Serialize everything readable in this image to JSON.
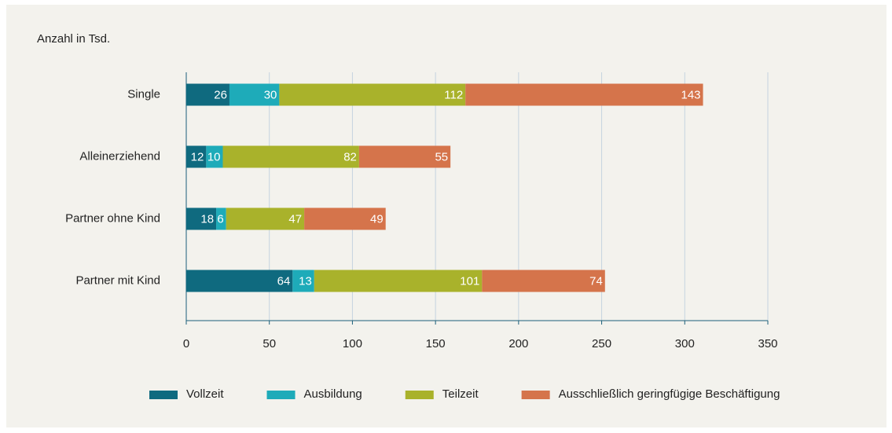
{
  "chart_data": {
    "type": "stacked-bar-horizontal",
    "title": "Anzahl in Tsd.",
    "categories": [
      "Single",
      "Alleinerziehend",
      "Partner ohne Kind",
      "Partner mit Kind"
    ],
    "series": [
      {
        "name": "Vollzeit",
        "color": "#0f6a7f",
        "values": [
          26,
          12,
          18,
          64
        ]
      },
      {
        "name": "Ausbildung",
        "color": "#1eabb9",
        "values": [
          30,
          10,
          6,
          13
        ]
      },
      {
        "name": "Teilzeit",
        "color": "#a9b22b",
        "values": [
          112,
          82,
          47,
          101
        ]
      },
      {
        "name": "Ausschließlich geringfügige Beschäftigung",
        "color": "#d5744b",
        "values": [
          143,
          55,
          49,
          74
        ]
      }
    ],
    "xlim": [
      0,
      350
    ],
    "xticks": [
      0,
      50,
      100,
      150,
      200,
      250,
      300,
      350
    ],
    "grid": true,
    "legend": "bottom"
  }
}
